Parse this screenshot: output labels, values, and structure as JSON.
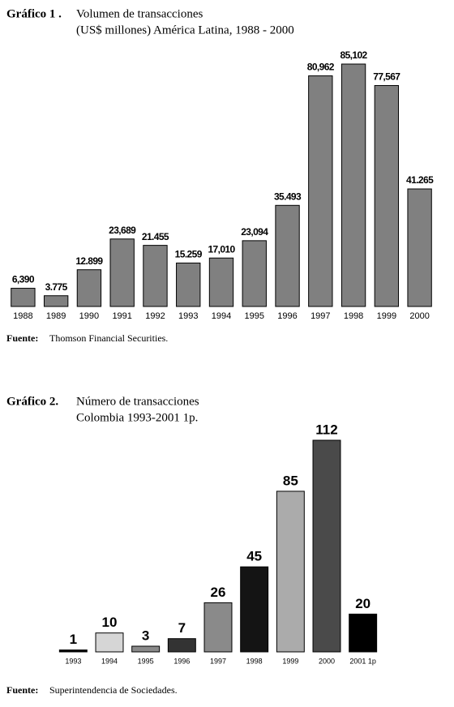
{
  "chart_data": [
    {
      "type": "bar",
      "label": "Gráfico 1 .",
      "title": "Volumen de transacciones",
      "subtitle": "(US$ millones) América Latina, 1988 - 2000",
      "categories": [
        "1988",
        "1989",
        "1990",
        "1991",
        "1992",
        "1993",
        "1994",
        "1995",
        "1996",
        "1997",
        "1998",
        "1999",
        "2000"
      ],
      "values": [
        6390,
        3775,
        12899,
        23689,
        21455,
        15259,
        17010,
        23094,
        35493,
        80962,
        85102,
        77567,
        41265
      ],
      "value_labels": [
        "6,390",
        "3.775",
        "12.899",
        "23,689",
        "21.455",
        "15.259",
        "17,010",
        "23,094",
        "35.493",
        "80,962",
        "85,102",
        "77,567",
        "41.265"
      ],
      "color": "#808080",
      "source_label": "Fuente:",
      "source": "Thomson Financial Securities."
    },
    {
      "type": "bar",
      "label": "Gráfico 2.",
      "title": "Número de transacciones",
      "subtitle": "Colombia 1993-2001 1p.",
      "categories": [
        "1993",
        "1994",
        "1995",
        "1996",
        "1997",
        "1998",
        "1999",
        "2000",
        "2001 1p"
      ],
      "values": [
        1,
        10,
        3,
        7,
        26,
        45,
        85,
        112,
        20
      ],
      "colors": [
        "#000000",
        "#d6d6d6",
        "#8a8a8a",
        "#333333",
        "#8a8a8a",
        "#141414",
        "#ababab",
        "#4a4a4a",
        "#000000"
      ],
      "source_label": "Fuente:",
      "source": "Superintendencia de Sociedades."
    }
  ]
}
